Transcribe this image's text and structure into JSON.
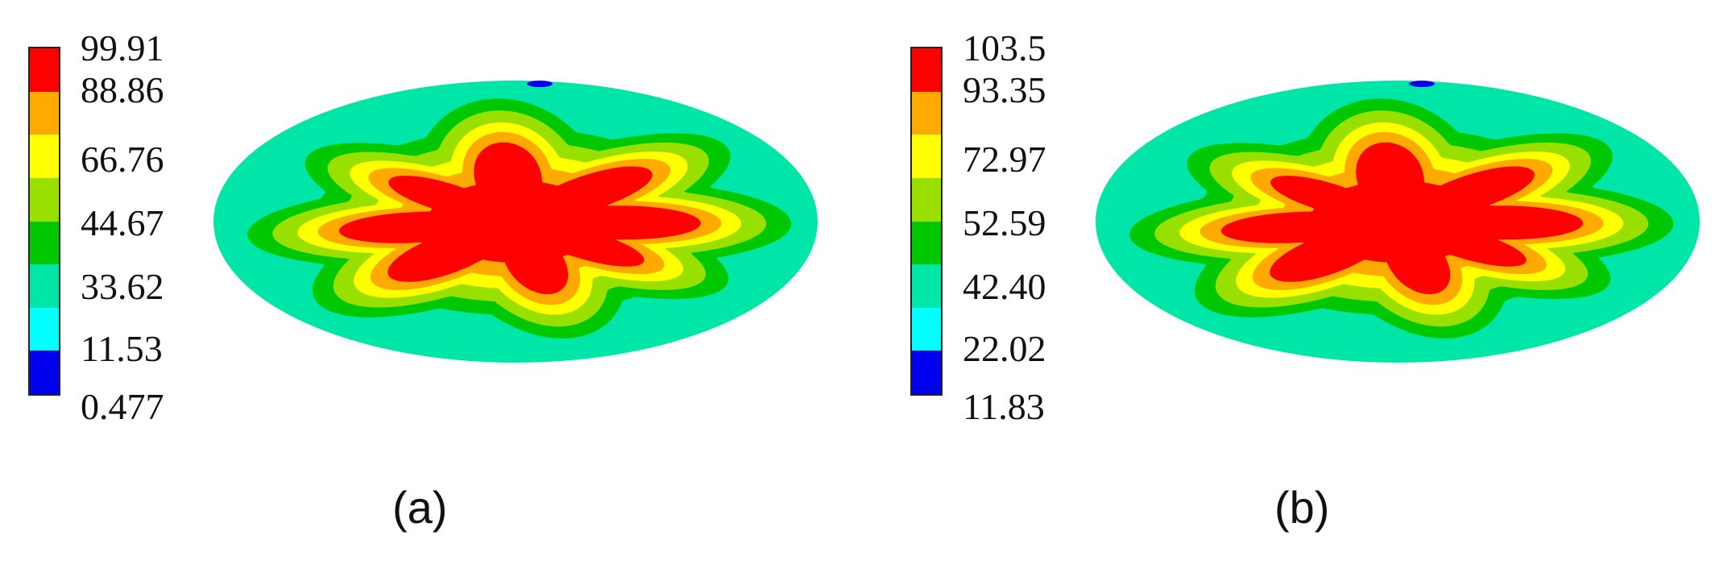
{
  "colors": [
    "#0000ee",
    "#00a2ff",
    "#00ffff",
    "#00e6a8",
    "#00c800",
    "#99e000",
    "#ffff00",
    "#ffaa00",
    "#ff0000"
  ],
  "panels": [
    {
      "id": "a",
      "caption": "(a)",
      "ticks": [
        "99.91",
        "88.86",
        "66.76",
        "44.67",
        "33.62",
        "11.53",
        "0.477"
      ]
    },
    {
      "id": "b",
      "caption": "(b)",
      "ticks": [
        "103.5",
        "93.35",
        "72.97",
        "52.59",
        "42.40",
        "22.02",
        "11.83"
      ]
    }
  ]
}
